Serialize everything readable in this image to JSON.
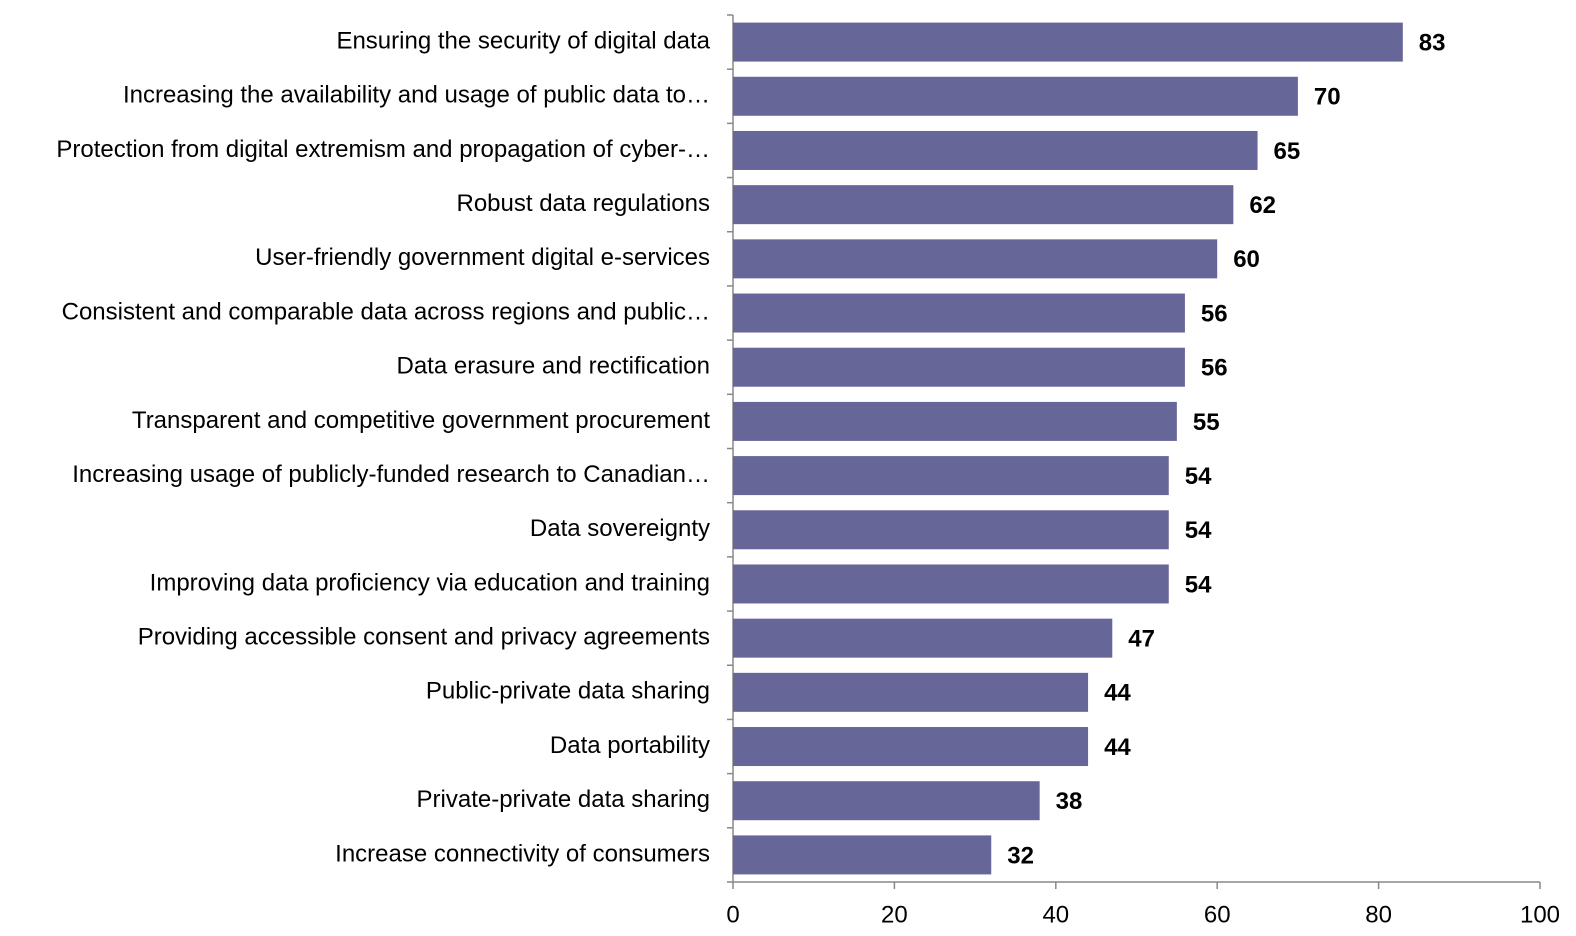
{
  "chart_data": {
    "type": "bar",
    "orientation": "horizontal",
    "categories": [
      "Ensuring the security of digital data",
      "Increasing the availability and usage of public data to…",
      "Protection from digital extremism and propagation of cyber-…",
      "Robust data regulations",
      "User-friendly government digital e-services",
      "Consistent and comparable data across regions and public…",
      "Data erasure and rectification",
      "Transparent and competitive government procurement",
      "Increasing usage of publicly-funded research to Canadian…",
      "Data sovereignty",
      "Improving data proficiency via education and training",
      "Providing accessible consent and privacy agreements",
      "Public-private data sharing",
      "Data portability",
      "Private-private data sharing",
      "Increase connectivity of consumers"
    ],
    "values": [
      83,
      70,
      65,
      62,
      60,
      56,
      56,
      55,
      54,
      54,
      54,
      47,
      44,
      44,
      38,
      32
    ],
    "color": "#666699",
    "xlim": [
      0,
      100
    ],
    "xticks": [
      0,
      20,
      40,
      60,
      80,
      100
    ],
    "grid": false
  }
}
